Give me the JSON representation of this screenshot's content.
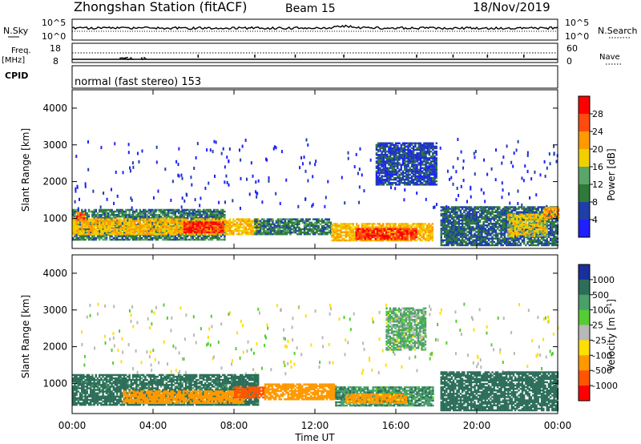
{
  "header": {
    "station": "Zhongshan Station (fitACF)",
    "beam": "Beam 15",
    "date": "18/Nov/2019"
  },
  "noise_panel": {
    "left_label": "N.Sky",
    "left_ticks": [
      "10^5",
      "10^0"
    ],
    "right_label": "N.Search",
    "right_ticks": [
      "10^5",
      "10^0"
    ]
  },
  "freq_panel": {
    "left_label_1": "Freq.",
    "left_label_2": "[MHz]",
    "left_ticks": [
      "18",
      "8"
    ],
    "right_label": "Nave",
    "right_ticks": [
      "60",
      "0"
    ]
  },
  "cpid_panel": {
    "label": "CPID",
    "text": "normal (fast stereo) 153"
  },
  "time_axis": {
    "title": "Time UT",
    "ticks": [
      "00:00",
      "04:00",
      "08:00",
      "12:00",
      "16:00",
      "20:00",
      "00:00"
    ]
  },
  "power_panel": {
    "ylabel": "Slant Range [km]",
    "yticks": [
      "1000",
      "2000",
      "3000",
      "4000"
    ],
    "colorbar_label": "Power [dB]",
    "colorbar_ticks": [
      "4",
      "8",
      "12",
      "16",
      "20",
      "24",
      "28"
    ]
  },
  "velocity_panel": {
    "ylabel": "Slant Range [km]",
    "yticks": [
      "1000",
      "2000",
      "3000",
      "4000"
    ],
    "colorbar_label": "Velocity [m s",
    "colorbar_label_sup": "-1",
    "colorbar_label_end": "]",
    "colorbar_ticks": [
      "1000",
      "500",
      "100",
      "25",
      "-25",
      "-100",
      "-500",
      "-1000"
    ]
  },
  "colors": {
    "power_scale": [
      "#1f1fff",
      "#1f3fa8",
      "#2f7a3a",
      "#5aa66a",
      "#f0d000",
      "#ff9a00",
      "#ff4a10",
      "#ff0000"
    ],
    "velocity_scale": [
      "#1a2f9e",
      "#2d6e5a",
      "#4aa06a",
      "#55cc33",
      "#b8b8b8",
      "#ffdf00",
      "#ff9900",
      "#ff5500",
      "#ff0000"
    ]
  },
  "chart_data": [
    {
      "type": "heatmap",
      "title": "Power",
      "x": "time (UT hours)",
      "xlim": [
        0,
        24
      ],
      "ylim": [
        180,
        4500
      ],
      "ylabel": "Slant Range [km]",
      "xlabel": "Time UT",
      "colorbar": "Power [dB]",
      "colorbar_range": [
        0,
        30
      ],
      "regions": [
        {
          "t0": 0.0,
          "t1": 7.5,
          "r0": 400,
          "r1": 1250,
          "value": 10
        },
        {
          "t0": 0.0,
          "t1": 9.2,
          "r0": 550,
          "r1": 1000,
          "value": 20
        },
        {
          "t0": 5.5,
          "t1": 7.5,
          "r0": 600,
          "r1": 900,
          "value": 28
        },
        {
          "t0": 0.2,
          "t1": 0.6,
          "r0": 950,
          "r1": 1150,
          "value": 26
        },
        {
          "t0": 9.0,
          "t1": 12.8,
          "r0": 550,
          "r1": 1000,
          "value": 10
        },
        {
          "t0": 12.8,
          "t1": 17.8,
          "r0": 380,
          "r1": 850,
          "value": 20
        },
        {
          "t0": 14.0,
          "t1": 17.0,
          "r0": 420,
          "r1": 700,
          "value": 28
        },
        {
          "t0": 15.0,
          "t1": 18.0,
          "r0": 1900,
          "r1": 3050,
          "value": 6
        },
        {
          "t0": 18.2,
          "t1": 24.0,
          "r0": 250,
          "r1": 1300,
          "value": 8
        },
        {
          "t0": 21.5,
          "t1": 23.5,
          "r0": 500,
          "r1": 1100,
          "value": 18
        },
        {
          "t0": 23.3,
          "t1": 24.0,
          "r0": 1000,
          "r1": 1300,
          "value": 22
        }
      ]
    },
    {
      "type": "heatmap",
      "title": "Velocity",
      "x": "time (UT hours)",
      "xlim": [
        0,
        24
      ],
      "ylim": [
        180,
        4500
      ],
      "ylabel": "Slant Range [km]",
      "xlabel": "Time UT",
      "colorbar": "Velocity [m s-1]",
      "colorbar_range": [
        -1000,
        1000
      ],
      "regions": [
        {
          "t0": 0.0,
          "t1": 9.2,
          "r0": 400,
          "r1": 1250,
          "value": 150
        },
        {
          "t0": 2.5,
          "t1": 8.5,
          "r0": 450,
          "r1": 800,
          "value": -400
        },
        {
          "t0": 8.0,
          "t1": 9.5,
          "r0": 600,
          "r1": 900,
          "value": -600
        },
        {
          "t0": 9.5,
          "t1": 13.0,
          "r0": 550,
          "r1": 1000,
          "value": -200
        },
        {
          "t0": 13.0,
          "t1": 17.8,
          "r0": 380,
          "r1": 900,
          "value": 80
        },
        {
          "t0": 13.5,
          "t1": 16.5,
          "r0": 450,
          "r1": 700,
          "value": -150
        },
        {
          "t0": 15.5,
          "t1": 17.5,
          "r0": 1900,
          "r1": 3050,
          "value": 30
        },
        {
          "t0": 18.2,
          "t1": 24.0,
          "r0": 250,
          "r1": 1300,
          "value": 300
        }
      ]
    }
  ]
}
